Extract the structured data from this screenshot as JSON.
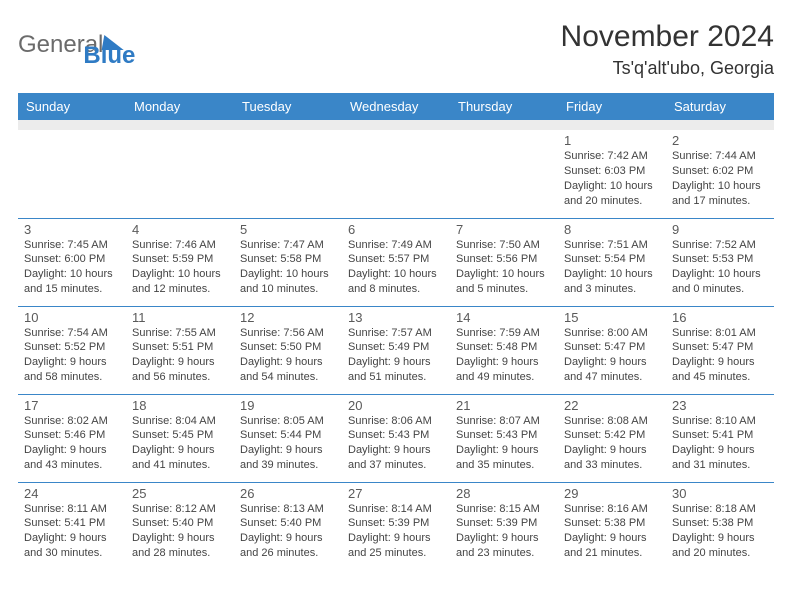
{
  "logo": {
    "text1": "General",
    "text2": "Blue"
  },
  "title": "November 2024",
  "location": "Ts'q'alt'ubo, Georgia",
  "dayHeaders": [
    "Sunday",
    "Monday",
    "Tuesday",
    "Wednesday",
    "Thursday",
    "Friday",
    "Saturday"
  ],
  "colors": {
    "headerBg": "#3a86c8",
    "headerText": "#ffffff",
    "spacerBg": "#ececec",
    "rowBorder": "#3a86c8",
    "logoGray": "#6b6b6b",
    "logoBlue": "#2f7bc4"
  },
  "weeks": [
    [
      null,
      null,
      null,
      null,
      null,
      {
        "n": "1",
        "sunrise": "Sunrise: 7:42 AM",
        "sunset": "Sunset: 6:03 PM",
        "dl1": "Daylight: 10 hours",
        "dl2": "and 20 minutes."
      },
      {
        "n": "2",
        "sunrise": "Sunrise: 7:44 AM",
        "sunset": "Sunset: 6:02 PM",
        "dl1": "Daylight: 10 hours",
        "dl2": "and 17 minutes."
      }
    ],
    [
      {
        "n": "3",
        "sunrise": "Sunrise: 7:45 AM",
        "sunset": "Sunset: 6:00 PM",
        "dl1": "Daylight: 10 hours",
        "dl2": "and 15 minutes."
      },
      {
        "n": "4",
        "sunrise": "Sunrise: 7:46 AM",
        "sunset": "Sunset: 5:59 PM",
        "dl1": "Daylight: 10 hours",
        "dl2": "and 12 minutes."
      },
      {
        "n": "5",
        "sunrise": "Sunrise: 7:47 AM",
        "sunset": "Sunset: 5:58 PM",
        "dl1": "Daylight: 10 hours",
        "dl2": "and 10 minutes."
      },
      {
        "n": "6",
        "sunrise": "Sunrise: 7:49 AM",
        "sunset": "Sunset: 5:57 PM",
        "dl1": "Daylight: 10 hours",
        "dl2": "and 8 minutes."
      },
      {
        "n": "7",
        "sunrise": "Sunrise: 7:50 AM",
        "sunset": "Sunset: 5:56 PM",
        "dl1": "Daylight: 10 hours",
        "dl2": "and 5 minutes."
      },
      {
        "n": "8",
        "sunrise": "Sunrise: 7:51 AM",
        "sunset": "Sunset: 5:54 PM",
        "dl1": "Daylight: 10 hours",
        "dl2": "and 3 minutes."
      },
      {
        "n": "9",
        "sunrise": "Sunrise: 7:52 AM",
        "sunset": "Sunset: 5:53 PM",
        "dl1": "Daylight: 10 hours",
        "dl2": "and 0 minutes."
      }
    ],
    [
      {
        "n": "10",
        "sunrise": "Sunrise: 7:54 AM",
        "sunset": "Sunset: 5:52 PM",
        "dl1": "Daylight: 9 hours",
        "dl2": "and 58 minutes."
      },
      {
        "n": "11",
        "sunrise": "Sunrise: 7:55 AM",
        "sunset": "Sunset: 5:51 PM",
        "dl1": "Daylight: 9 hours",
        "dl2": "and 56 minutes."
      },
      {
        "n": "12",
        "sunrise": "Sunrise: 7:56 AM",
        "sunset": "Sunset: 5:50 PM",
        "dl1": "Daylight: 9 hours",
        "dl2": "and 54 minutes."
      },
      {
        "n": "13",
        "sunrise": "Sunrise: 7:57 AM",
        "sunset": "Sunset: 5:49 PM",
        "dl1": "Daylight: 9 hours",
        "dl2": "and 51 minutes."
      },
      {
        "n": "14",
        "sunrise": "Sunrise: 7:59 AM",
        "sunset": "Sunset: 5:48 PM",
        "dl1": "Daylight: 9 hours",
        "dl2": "and 49 minutes."
      },
      {
        "n": "15",
        "sunrise": "Sunrise: 8:00 AM",
        "sunset": "Sunset: 5:47 PM",
        "dl1": "Daylight: 9 hours",
        "dl2": "and 47 minutes."
      },
      {
        "n": "16",
        "sunrise": "Sunrise: 8:01 AM",
        "sunset": "Sunset: 5:47 PM",
        "dl1": "Daylight: 9 hours",
        "dl2": "and 45 minutes."
      }
    ],
    [
      {
        "n": "17",
        "sunrise": "Sunrise: 8:02 AM",
        "sunset": "Sunset: 5:46 PM",
        "dl1": "Daylight: 9 hours",
        "dl2": "and 43 minutes."
      },
      {
        "n": "18",
        "sunrise": "Sunrise: 8:04 AM",
        "sunset": "Sunset: 5:45 PM",
        "dl1": "Daylight: 9 hours",
        "dl2": "and 41 minutes."
      },
      {
        "n": "19",
        "sunrise": "Sunrise: 8:05 AM",
        "sunset": "Sunset: 5:44 PM",
        "dl1": "Daylight: 9 hours",
        "dl2": "and 39 minutes."
      },
      {
        "n": "20",
        "sunrise": "Sunrise: 8:06 AM",
        "sunset": "Sunset: 5:43 PM",
        "dl1": "Daylight: 9 hours",
        "dl2": "and 37 minutes."
      },
      {
        "n": "21",
        "sunrise": "Sunrise: 8:07 AM",
        "sunset": "Sunset: 5:43 PM",
        "dl1": "Daylight: 9 hours",
        "dl2": "and 35 minutes."
      },
      {
        "n": "22",
        "sunrise": "Sunrise: 8:08 AM",
        "sunset": "Sunset: 5:42 PM",
        "dl1": "Daylight: 9 hours",
        "dl2": "and 33 minutes."
      },
      {
        "n": "23",
        "sunrise": "Sunrise: 8:10 AM",
        "sunset": "Sunset: 5:41 PM",
        "dl1": "Daylight: 9 hours",
        "dl2": "and 31 minutes."
      }
    ],
    [
      {
        "n": "24",
        "sunrise": "Sunrise: 8:11 AM",
        "sunset": "Sunset: 5:41 PM",
        "dl1": "Daylight: 9 hours",
        "dl2": "and 30 minutes."
      },
      {
        "n": "25",
        "sunrise": "Sunrise: 8:12 AM",
        "sunset": "Sunset: 5:40 PM",
        "dl1": "Daylight: 9 hours",
        "dl2": "and 28 minutes."
      },
      {
        "n": "26",
        "sunrise": "Sunrise: 8:13 AM",
        "sunset": "Sunset: 5:40 PM",
        "dl1": "Daylight: 9 hours",
        "dl2": "and 26 minutes."
      },
      {
        "n": "27",
        "sunrise": "Sunrise: 8:14 AM",
        "sunset": "Sunset: 5:39 PM",
        "dl1": "Daylight: 9 hours",
        "dl2": "and 25 minutes."
      },
      {
        "n": "28",
        "sunrise": "Sunrise: 8:15 AM",
        "sunset": "Sunset: 5:39 PM",
        "dl1": "Daylight: 9 hours",
        "dl2": "and 23 minutes."
      },
      {
        "n": "29",
        "sunrise": "Sunrise: 8:16 AM",
        "sunset": "Sunset: 5:38 PM",
        "dl1": "Daylight: 9 hours",
        "dl2": "and 21 minutes."
      },
      {
        "n": "30",
        "sunrise": "Sunrise: 8:18 AM",
        "sunset": "Sunset: 5:38 PM",
        "dl1": "Daylight: 9 hours",
        "dl2": "and 20 minutes."
      }
    ]
  ]
}
